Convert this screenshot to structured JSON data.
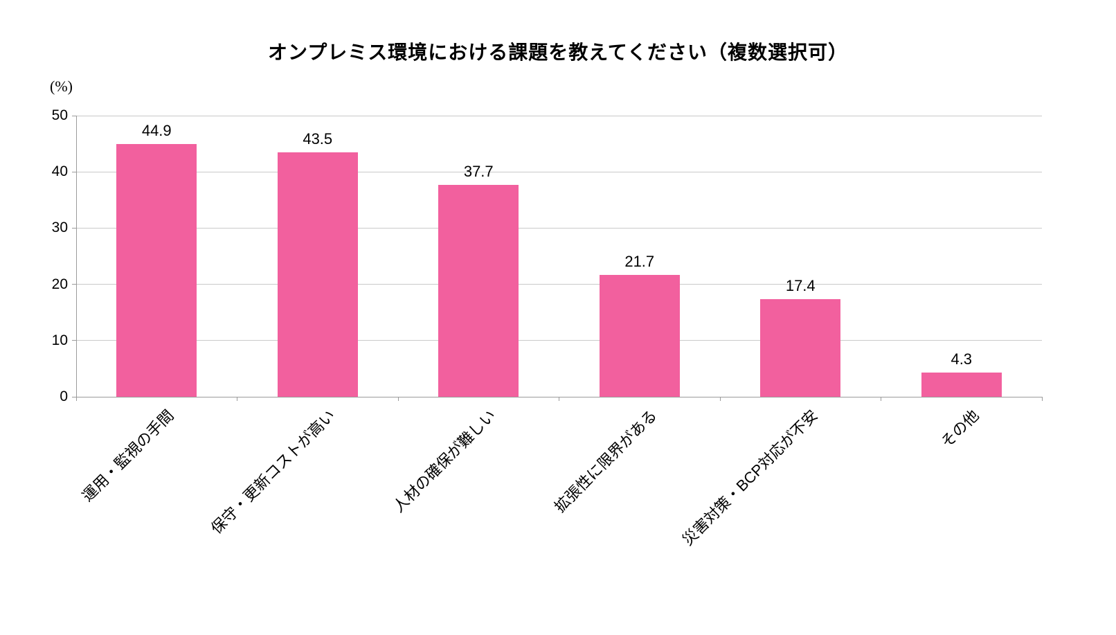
{
  "chart_data": {
    "type": "bar",
    "title": "オンプレミス環境における課題を教えてください（複数選択可）",
    "unit_label": "(%)",
    "categories": [
      "運用・監視の手間",
      "保守・更新コストが高い",
      "人材の確保が難しい",
      "拡張性に限界がある",
      "災害対策・BCP対応が不安",
      "その他"
    ],
    "values": [
      44.9,
      43.5,
      37.7,
      21.7,
      17.4,
      4.3
    ],
    "value_labels": [
      "44.9",
      "43.5",
      "37.7",
      "21.7",
      "17.4",
      "4.3"
    ],
    "ylim": [
      0,
      50
    ],
    "yticks": [
      0,
      10,
      20,
      30,
      40,
      50
    ],
    "grid": "horizontal",
    "legend": "none",
    "bar_color": "#f2609e",
    "grid_color": "#c9c9c9",
    "axis_color": "#9a9a9a",
    "text_color": "#000000"
  }
}
